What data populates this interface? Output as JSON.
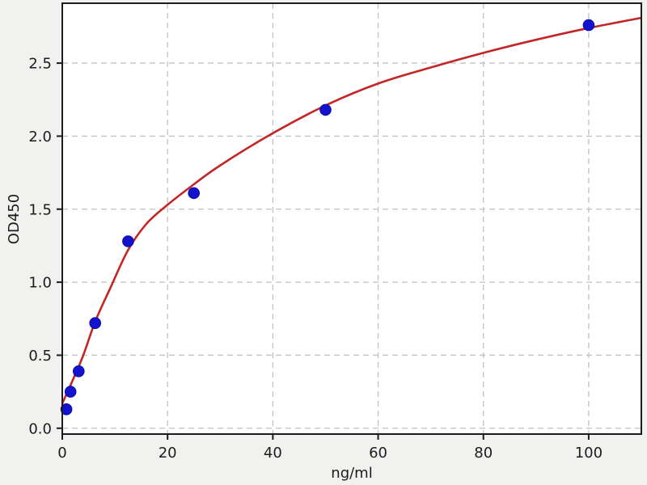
{
  "figure": {
    "background": "#f1f1ef"
  },
  "chart_data": {
    "type": "scatter",
    "title": "",
    "xlabel": "ng/ml",
    "ylabel": "OD450",
    "xlim": [
      0,
      110
    ],
    "ylim": [
      -0.04,
      2.91
    ],
    "x_ticks": [
      0,
      20,
      40,
      60,
      80,
      100
    ],
    "x_tick_labels": [
      "0",
      "20",
      "40",
      "60",
      "80",
      "100"
    ],
    "y_ticks": [
      0,
      0.5,
      1,
      1.5,
      2,
      2.5
    ],
    "y_tick_labels": [
      "0.0",
      "0.5",
      "1.0",
      "1.5",
      "2.0",
      "2.5"
    ],
    "grid": true,
    "legend_position": "none",
    "colors": {
      "plot_bg": "#ffffff",
      "grid": "#c2c2c2",
      "axis": "#1c1c1c",
      "text": "#1c1c1c",
      "point": "#1313cd",
      "point_edge": "#0a0aa8",
      "curve": "#c22626"
    },
    "series": [
      {
        "name": "standard-points",
        "type": "scatter",
        "color": "#1313cd",
        "points": [
          [
            0.78,
            0.13
          ],
          [
            1.56,
            0.25
          ],
          [
            3.125,
            0.39
          ],
          [
            6.25,
            0.72
          ],
          [
            12.5,
            1.28
          ],
          [
            25,
            1.61
          ],
          [
            50,
            2.18
          ],
          [
            100,
            2.76
          ]
        ]
      },
      {
        "name": "fit-curve",
        "type": "line",
        "color": "#c22626",
        "points": [
          [
            0,
            0.17
          ],
          [
            2,
            0.33
          ],
          [
            4,
            0.5
          ],
          [
            6.25,
            0.73
          ],
          [
            9,
            0.95
          ],
          [
            12.5,
            1.22
          ],
          [
            16,
            1.4
          ],
          [
            20,
            1.53
          ],
          [
            25,
            1.67
          ],
          [
            30,
            1.8
          ],
          [
            40,
            2.02
          ],
          [
            50,
            2.21
          ],
          [
            60,
            2.36
          ],
          [
            70,
            2.47
          ],
          [
            80,
            2.57
          ],
          [
            90,
            2.66
          ],
          [
            100,
            2.74
          ],
          [
            110,
            2.81
          ]
        ]
      }
    ]
  }
}
